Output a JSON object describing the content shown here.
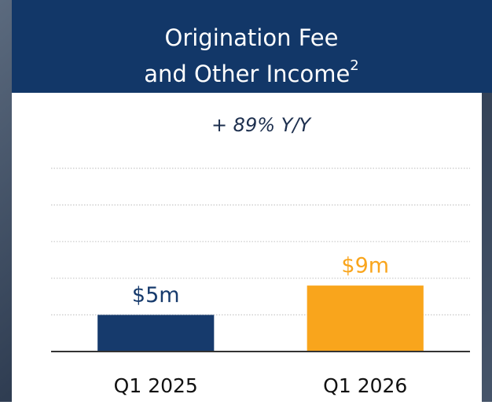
{
  "chart_data": {
    "type": "bar",
    "title_lines": [
      "Origination Fee",
      "and Other Income"
    ],
    "title_superscript": "2",
    "subtitle": "+ 89% Y/Y",
    "categories": [
      "Q1 2025",
      "Q1 2026"
    ],
    "values": [
      5,
      9
    ],
    "value_labels": [
      "$5m",
      "$9m"
    ],
    "colors": [
      "#163a6c",
      "#f9a51c"
    ],
    "ylim": [
      0,
      25
    ],
    "yticks": [
      5,
      10,
      15,
      20,
      25
    ],
    "grid": true
  }
}
